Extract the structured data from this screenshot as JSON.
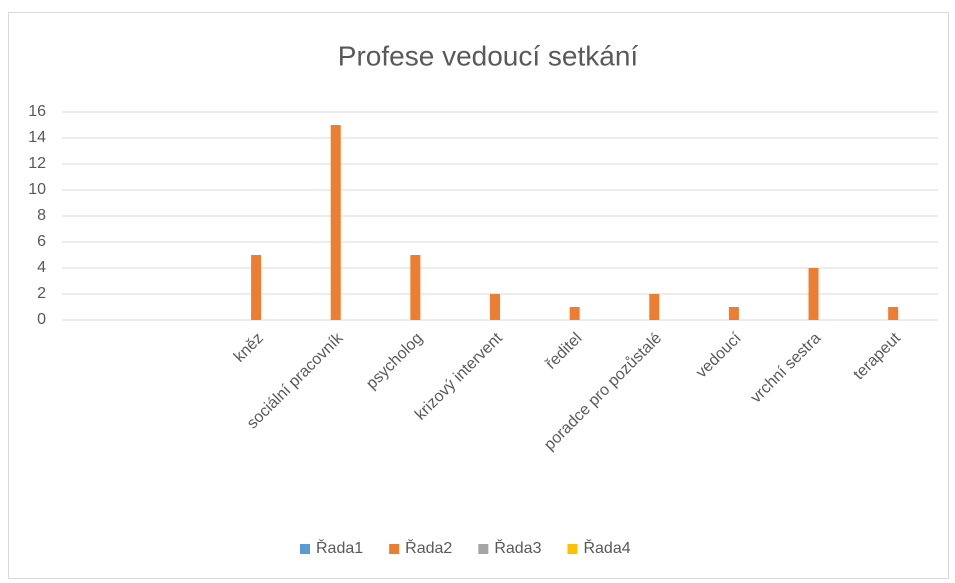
{
  "chart_data": {
    "type": "bar",
    "title": "Profese vedoucí setkání",
    "categories": [
      null,
      null,
      "kněz",
      "sociální pracovník",
      "psycholog",
      "krizový intervent",
      "ředitel",
      "poradce pro pozůstalé",
      "vedoucí",
      "vrchní sestra",
      "terapeut"
    ],
    "series": [
      {
        "name": "Řada1",
        "color": "#5b9bd5",
        "values": [
          null,
          null,
          null,
          null,
          null,
          null,
          null,
          null,
          null,
          null,
          null
        ]
      },
      {
        "name": "Řada2",
        "color": "#ed7d31",
        "values": [
          null,
          null,
          5,
          15,
          5,
          2,
          1,
          2,
          1,
          4,
          1
        ]
      },
      {
        "name": "Řada3",
        "color": "#a5a5a5",
        "values": [
          null,
          null,
          null,
          null,
          null,
          null,
          null,
          null,
          null,
          null,
          null
        ]
      },
      {
        "name": "Řada4",
        "color": "#ffc000",
        "values": [
          null,
          null,
          null,
          null,
          null,
          null,
          null,
          null,
          null,
          null,
          null
        ]
      }
    ],
    "ylim": [
      0,
      16
    ],
    "yticks": [
      0,
      2,
      4,
      6,
      8,
      10,
      12,
      14,
      16
    ],
    "grid": true,
    "legend": "bottom"
  }
}
